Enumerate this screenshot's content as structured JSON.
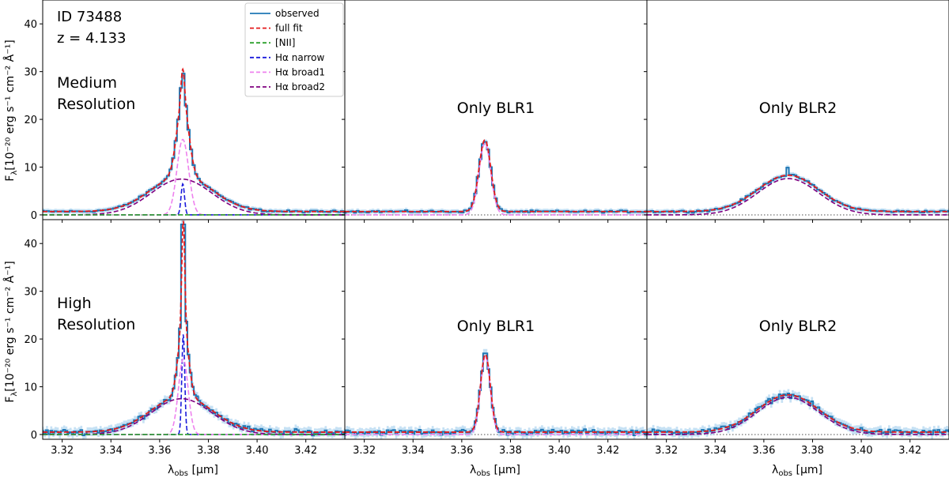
{
  "figure": {
    "id_label": "ID 73488",
    "z_label": "z = 4.133",
    "ylabel": "F",
    "ylabel_sub": "λ",
    "ylabel_rest": "[10⁻²⁰ erg s⁻¹ cm⁻² Å⁻¹]",
    "xlabel": "λ",
    "xlabel_sub": "obs",
    "xlabel_rest": " [µm]"
  },
  "chart_data": {
    "type": "line",
    "layout": "2x3 grid, shared axes",
    "xlim": [
      3.312,
      3.436
    ],
    "ylim": [
      -1,
      45
    ],
    "xticks": [
      3.32,
      3.34,
      3.36,
      3.38,
      3.4,
      3.42
    ],
    "xtick_labels": [
      "3.32",
      "3.34",
      "3.36",
      "3.38",
      "3.40",
      "3.42"
    ],
    "yticks": [
      0,
      10,
      20,
      30,
      40
    ],
    "ytick_labels": [
      "0",
      "10",
      "20",
      "30",
      "40"
    ],
    "legend": {
      "placement": "upper-right of top-left panel",
      "entries": [
        {
          "label": "observed",
          "color": "#1f77b4",
          "style": "solid"
        },
        {
          "label": "full fit",
          "color": "#e41a1c",
          "style": "dashed"
        },
        {
          "label": "[NII]",
          "color": "#2ca02c",
          "style": "dashed"
        },
        {
          "label": "Hα narrow",
          "color": "#1a1adb",
          "style": "dashed"
        },
        {
          "label": "Hα broad1",
          "color": "#ee82ee",
          "style": "dashed"
        },
        {
          "label": "Hα broad2",
          "color": "#800080",
          "style": "dashed"
        }
      ]
    },
    "zero_line": {
      "color": "#888888",
      "style": "dotted"
    },
    "panels": [
      {
        "row": 0,
        "col": 0,
        "label": "Medium\nResolution",
        "continuum": 0.7,
        "components": [
          {
            "name": "Hα narrow",
            "center": 3.3695,
            "amplitude": 6.5,
            "sigma": 0.0007
          },
          {
            "name": "Hα broad1",
            "center": 3.3695,
            "amplitude": 15.8,
            "sigma": 0.0024
          },
          {
            "name": "Hα broad2",
            "center": 3.369,
            "amplitude": 7.5,
            "sigma": 0.0125
          }
        ],
        "observed_peak": 29.6
      },
      {
        "row": 0,
        "col": 1,
        "label": "Only BLR1",
        "continuum": 0.7,
        "components": [
          {
            "name": "Hα broad1",
            "center": 3.3695,
            "amplitude": 15.0,
            "sigma": 0.0024
          }
        ],
        "observed_peak": 15.3
      },
      {
        "row": 0,
        "col": 2,
        "label": "Only BLR2",
        "continuum": 0.7,
        "components": [
          {
            "name": "Hα broad2",
            "center": 3.37,
            "amplitude": 7.6,
            "sigma": 0.0125
          }
        ],
        "observed_peak": 9.9
      },
      {
        "row": 1,
        "col": 0,
        "label": "High\nResolution",
        "continuum": 0.5,
        "components": [
          {
            "name": "Hα narrow",
            "center": 3.3697,
            "amplitude": 21.0,
            "sigma": 0.0006
          },
          {
            "name": "Hα broad1",
            "center": 3.3697,
            "amplitude": 15.8,
            "sigma": 0.002
          },
          {
            "name": "Hα broad2",
            "center": 3.369,
            "amplitude": 7.5,
            "sigma": 0.0125
          }
        ],
        "observed_peak": 44.0
      },
      {
        "row": 1,
        "col": 1,
        "label": "Only BLR1",
        "continuum": 0.5,
        "components": [
          {
            "name": "Hα broad1",
            "center": 3.3697,
            "amplitude": 16.3,
            "sigma": 0.002
          }
        ],
        "observed_peak": 17.0
      },
      {
        "row": 1,
        "col": 2,
        "label": "Only BLR2",
        "continuum": 0.5,
        "components": [
          {
            "name": "Hα broad2",
            "center": 3.37,
            "amplitude": 7.8,
            "sigma": 0.0125
          }
        ],
        "observed_peak": 8.6
      }
    ]
  }
}
